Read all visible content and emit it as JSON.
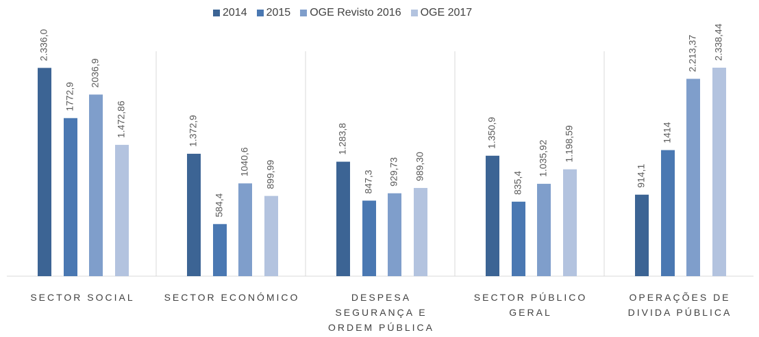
{
  "chart_data": {
    "type": "bar",
    "categories": [
      "SECTOR SOCIAL",
      "SECTOR ECONÓMICO",
      "DESPESA SEGURANÇA E ORDEM PÚBLICA",
      "SECTOR PÚBLICO GERAL",
      "OPERAÇÕES DE DIVIDA PÚBLICA"
    ],
    "series": [
      {
        "name": "2014",
        "color": "#3c6494",
        "values": [
          2336.0,
          1372.9,
          1283.8,
          1350.9,
          914.1
        ],
        "value_labels": [
          "2.336,0",
          "1.372,9",
          "1.283,8",
          "1.350,9",
          "914,1"
        ]
      },
      {
        "name": "2015",
        "color": "#4a78b2",
        "values": [
          1772.9,
          584.4,
          847.3,
          835.4,
          1414
        ],
        "value_labels": [
          "1772,9",
          "584,4",
          "847,3",
          "835,4",
          "1414"
        ]
      },
      {
        "name": "OGE Revisto 2016",
        "color": "#7f9ecb",
        "values": [
          2036.9,
          1040.6,
          929.73,
          1035.92,
          2213.37
        ],
        "value_labels": [
          "2036,9",
          "1040,6",
          "929,73",
          "1.035,92",
          "2.213,37"
        ]
      },
      {
        "name": "OGE 2017",
        "color": "#b3c3df",
        "values": [
          1472.86,
          899.99,
          989.3,
          1198.59,
          2338.44
        ],
        "value_labels": [
          "1.472,86",
          "899,99",
          "989,30",
          "1.198,59",
          "2.338,44"
        ]
      }
    ],
    "legend": "top"
  }
}
